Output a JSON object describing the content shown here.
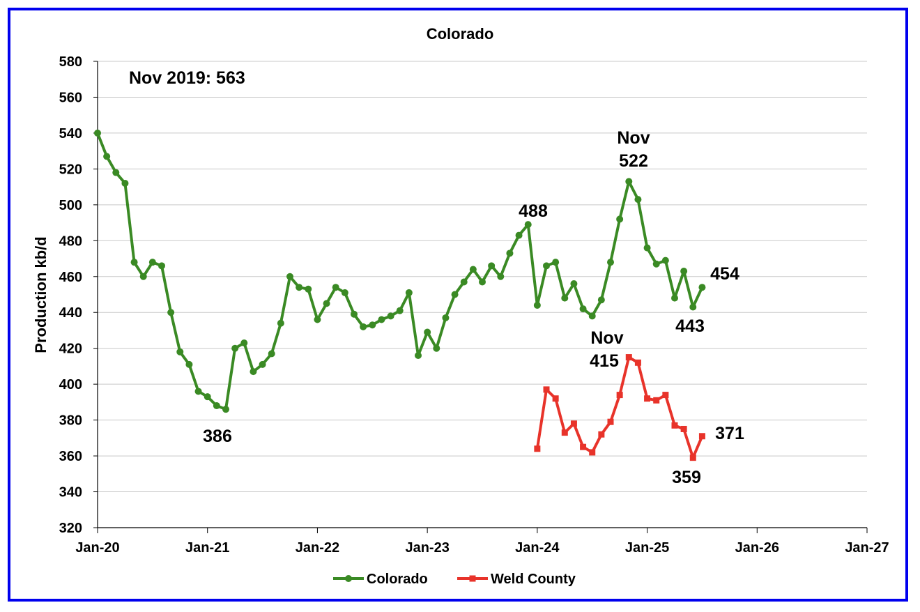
{
  "colors": {
    "frame": "#0000ee",
    "colorado": "#3a8a24",
    "weld": "#e8332a",
    "grid": "#c8c8c8"
  },
  "chart_data": {
    "type": "line",
    "title": "Colorado",
    "ylabel": "Production kb/d",
    "xlabel": "",
    "ylim": [
      320,
      580
    ],
    "y_ticks": [
      320,
      340,
      360,
      380,
      400,
      420,
      440,
      460,
      480,
      500,
      520,
      540,
      560,
      580
    ],
    "x_ticks": [
      "Jan-20",
      "Jan-21",
      "Jan-22",
      "Jan-23",
      "Jan-24",
      "Jan-25",
      "Jan-26",
      "Jan-27"
    ],
    "x_range_months": [
      0,
      84
    ],
    "grid": "horizontal",
    "legend_position": "bottom",
    "series": [
      {
        "name": "Colorado",
        "color": "#3a8a24",
        "marker": "circle",
        "start_month": 0,
        "values": [
          540,
          527,
          518,
          512,
          468,
          460,
          468,
          466,
          440,
          418,
          411,
          396,
          393,
          388,
          386,
          420,
          423,
          407,
          411,
          417,
          434,
          460,
          454,
          453,
          436,
          445,
          454,
          451,
          439,
          432,
          433,
          436,
          438,
          441,
          451,
          416,
          429,
          420,
          437,
          450,
          457,
          464,
          457,
          466,
          460,
          473,
          483,
          489,
          444,
          466,
          468,
          448,
          456,
          442,
          438,
          447,
          468,
          492,
          513,
          503,
          476,
          467,
          469,
          448,
          463,
          443,
          454
        ]
      },
      {
        "name": "Weld County",
        "color": "#e8332a",
        "marker": "square",
        "start_month": 48,
        "values": [
          364,
          397,
          392,
          373,
          378,
          365,
          362,
          372,
          379,
          394,
          415,
          412,
          392,
          391,
          394,
          377,
          375,
          359,
          371
        ]
      }
    ],
    "annotations": [
      {
        "id": "nov2019",
        "text": "Nov 2019:  563"
      },
      {
        "id": "c386",
        "text": "386"
      },
      {
        "id": "c488",
        "text": "488"
      },
      {
        "id": "cnov",
        "text": "Nov"
      },
      {
        "id": "c522",
        "text": "522"
      },
      {
        "id": "c454",
        "text": "454"
      },
      {
        "id": "c443",
        "text": "443"
      },
      {
        "id": "wnov",
        "text": "Nov"
      },
      {
        "id": "w415",
        "text": "415"
      },
      {
        "id": "w371",
        "text": "371"
      },
      {
        "id": "w359",
        "text": "359"
      }
    ]
  }
}
